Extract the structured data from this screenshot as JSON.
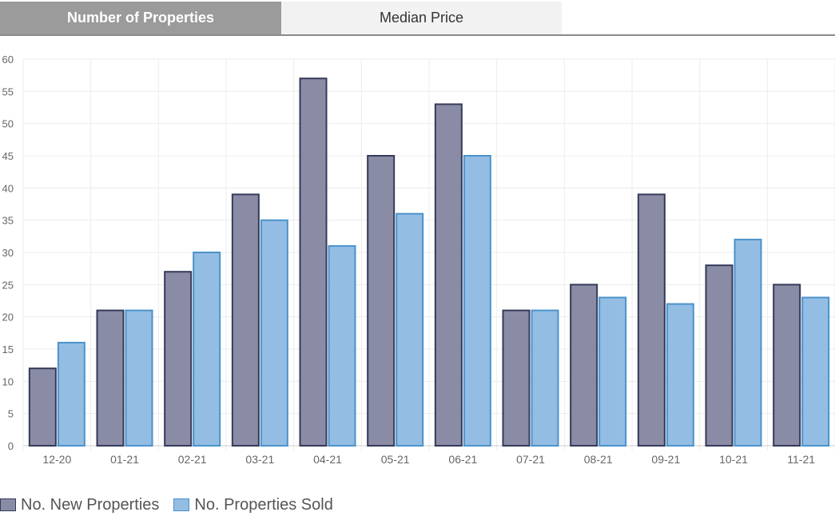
{
  "tabs": [
    {
      "label": "Number of Properties",
      "active": true
    },
    {
      "label": "Median Price",
      "active": false
    }
  ],
  "colors": {
    "new_fill": "#8a8ca6",
    "new_stroke": "#353a59",
    "sold_fill": "#94bde3",
    "sold_stroke": "#4a93cc",
    "grid": "#ececec",
    "tick_text": "#666666"
  },
  "legend": {
    "new_label": "No. New Properties",
    "sold_label": "No. Properties Sold"
  },
  "chart_data": {
    "type": "bar",
    "categories": [
      "12-20",
      "01-21",
      "02-21",
      "03-21",
      "04-21",
      "05-21",
      "06-21",
      "07-21",
      "08-21",
      "09-21",
      "10-21",
      "11-21"
    ],
    "series": [
      {
        "name": "No. New Properties",
        "values": [
          12,
          21,
          27,
          39,
          57,
          45,
          53,
          21,
          25,
          39,
          28,
          25
        ]
      },
      {
        "name": "No. Properties Sold",
        "values": [
          16,
          21,
          30,
          35,
          31,
          36,
          45,
          21,
          23,
          22,
          32,
          23
        ]
      }
    ],
    "ylim": [
      0,
      60
    ],
    "yticks": [
      0,
      5,
      10,
      15,
      20,
      25,
      30,
      35,
      40,
      45,
      50,
      55,
      60
    ],
    "grid": true,
    "legend_position": "bottom-left"
  }
}
